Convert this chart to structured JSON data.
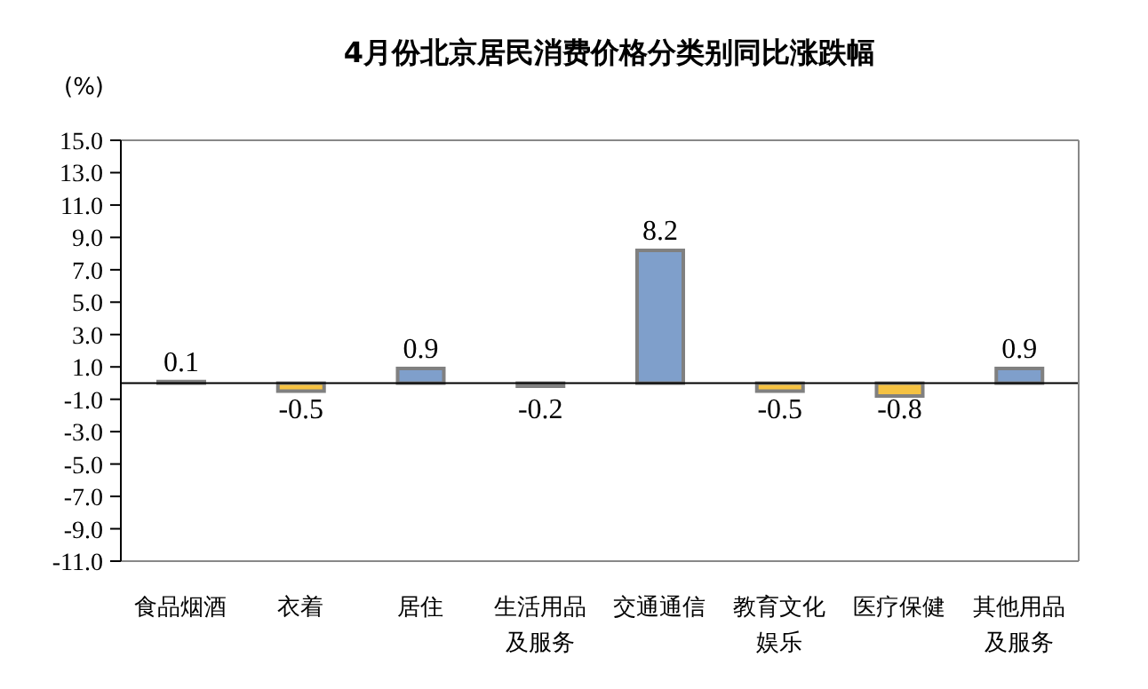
{
  "chart_data": {
    "type": "bar",
    "title": "4月份北京居民消费价格分类别同比涨跌幅",
    "ylabel": "(%)",
    "categories": [
      "食品烟酒",
      "衣着",
      "居住",
      "生活用品及服务",
      "交通通信",
      "教育文化娱乐",
      "医疗保健",
      "其他用品及服务"
    ],
    "values": [
      0.1,
      -0.5,
      0.9,
      -0.2,
      8.2,
      -0.5,
      -0.8,
      0.9
    ],
    "colors": [
      "#7f9fcb",
      "#f5c242",
      "#7f9fcb",
      "#7f9fcb",
      "#7f9fcb",
      "#f5c242",
      "#f5c242",
      "#7f9fcb"
    ],
    "ylim": [
      -11,
      15
    ],
    "yticks": [
      {
        "value": 15,
        "label": "15.0"
      },
      {
        "value": 13,
        "label": "13.0"
      },
      {
        "value": 11,
        "label": "11.0"
      },
      {
        "value": 9,
        "label": "9.0"
      },
      {
        "value": 7,
        "label": "7.0"
      },
      {
        "value": 5,
        "label": "5.0"
      },
      {
        "value": 3,
        "label": "3.0"
      },
      {
        "value": 1,
        "label": "1.0"
      },
      {
        "value": -1,
        "label": "-1.0"
      },
      {
        "value": -3,
        "label": "-3.0"
      },
      {
        "value": -5,
        "label": "-5.0"
      },
      {
        "value": -7,
        "label": "-7.0"
      },
      {
        "value": -9,
        "label": "-9.0"
      },
      {
        "value": -11,
        "label": "-11.0"
      }
    ],
    "data_labels": true,
    "grid": false
  }
}
